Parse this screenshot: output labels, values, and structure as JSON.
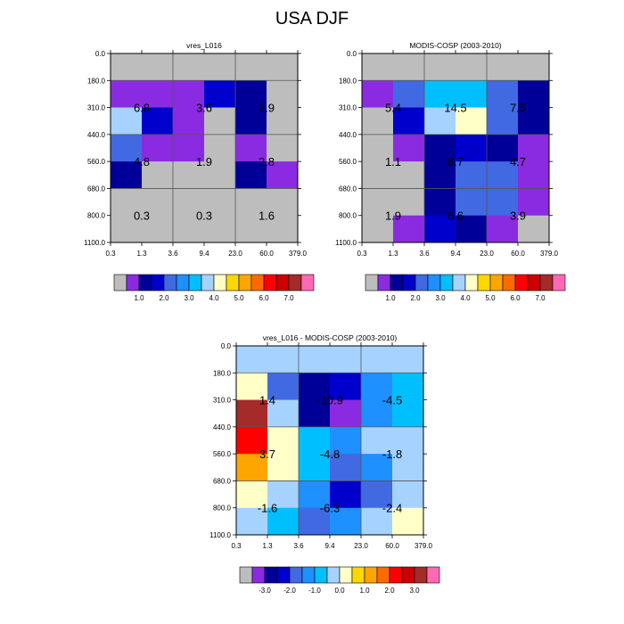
{
  "figure": {
    "title": "USA DJF"
  },
  "palette": [
    "#bdbdbd",
    "#8a2be2",
    "#000099",
    "#0000cd",
    "#4169e1",
    "#1e90ff",
    "#00bfff",
    "#a6d2ff",
    "#ffffc8",
    "#ffd700",
    "#ffa500",
    "#ff6a00",
    "#ff0000",
    "#cd0000",
    "#a52a2a",
    "#ff69b4"
  ],
  "diff_palette": [
    "#bdbdbd",
    "#8a2be2",
    "#000099",
    "#0000cd",
    "#4169e1",
    "#1e90ff",
    "#00bfff",
    "#a6d2ff",
    "#ffffc8",
    "#ffd700",
    "#ffa500",
    "#ff6a00",
    "#ff0000",
    "#cd0000",
    "#a52a2a",
    "#ff69b4"
  ],
  "chart_data": [
    {
      "type": "heatmap",
      "title": "vres_L016",
      "x_ticks": [
        "0.3",
        "1.3",
        "3.6",
        "9.4",
        "23.0",
        "60.0",
        "379.0"
      ],
      "y_ticks": [
        "0.0",
        "180.0",
        "310.0",
        "440.0",
        "560.0",
        "680.0",
        "800.0",
        "1100.0"
      ],
      "cell_colors": [
        [
          "#bdbdbd",
          "#bdbdbd",
          "#bdbdbd",
          "#bdbdbd",
          "#bdbdbd",
          "#bdbdbd"
        ],
        [
          "#8a2be2",
          "#8a2be2",
          "#8a2be2",
          "#0000cd",
          "#000099",
          "#bdbdbd"
        ],
        [
          "#a6d2ff",
          "#0000cd",
          "#8a2be2",
          "#bdbdbd",
          "#000099",
          "#bdbdbd"
        ],
        [
          "#4169e1",
          "#8a2be2",
          "#8a2be2",
          "#bdbdbd",
          "#8a2be2",
          "#bdbdbd"
        ],
        [
          "#000099",
          "#bdbdbd",
          "#bdbdbd",
          "#bdbdbd",
          "#000099",
          "#8a2be2"
        ],
        [
          "#bdbdbd",
          "#bdbdbd",
          "#bdbdbd",
          "#bdbdbd",
          "#bdbdbd",
          "#bdbdbd"
        ],
        [
          "#bdbdbd",
          "#bdbdbd",
          "#bdbdbd",
          "#bdbdbd",
          "#bdbdbd",
          "#bdbdbd"
        ]
      ],
      "cell_values": [
        [
          "6.8",
          "3.6",
          "2.9"
        ],
        [
          "4.8",
          "1.9",
          "2.8"
        ],
        [
          "0.3",
          "0.3",
          "1.6"
        ]
      ],
      "colorbar_labels": [
        "1.0",
        "2.0",
        "3.0",
        "4.0",
        "5.0",
        "6.0",
        "7.0"
      ]
    },
    {
      "type": "heatmap",
      "title": "MODIS-COSP (2003-2010)",
      "x_ticks": [
        "0.3",
        "1.3",
        "3.6",
        "9.4",
        "23.0",
        "60.0",
        "379.0"
      ],
      "y_ticks": [
        "0.0",
        "180.0",
        "310.0",
        "440.0",
        "560.0",
        "680.0",
        "800.0",
        "1100.0"
      ],
      "cell_colors": [
        [
          "#bdbdbd",
          "#bdbdbd",
          "#bdbdbd",
          "#bdbdbd",
          "#bdbdbd",
          "#bdbdbd"
        ],
        [
          "#8a2be2",
          "#4169e1",
          "#00bfff",
          "#00bfff",
          "#4169e1",
          "#000099"
        ],
        [
          "#bdbdbd",
          "#0000cd",
          "#a6d2ff",
          "#ffffc8",
          "#4169e1",
          "#000099"
        ],
        [
          "#bdbdbd",
          "#8a2be2",
          "#000099",
          "#0000cd",
          "#000099",
          "#8a2be2"
        ],
        [
          "#bdbdbd",
          "#bdbdbd",
          "#000099",
          "#4169e1",
          "#4169e1",
          "#8a2be2"
        ],
        [
          "#bdbdbd",
          "#bdbdbd",
          "#000099",
          "#4169e1",
          "#4169e1",
          "#8a2be2"
        ],
        [
          "#bdbdbd",
          "#8a2be2",
          "#0000cd",
          "#000099",
          "#8a2be2",
          "#bdbdbd"
        ]
      ],
      "cell_values": [
        [
          "5.4",
          "14.5",
          "7.5"
        ],
        [
          "1.1",
          "8.7",
          "4.7"
        ],
        [
          "1.9",
          "6.6",
          "3.9"
        ]
      ],
      "colorbar_labels": [
        "1.0",
        "2.0",
        "3.0",
        "4.0",
        "5.0",
        "6.0",
        "7.0"
      ]
    },
    {
      "type": "heatmap",
      "title": "vres_L016 - MODIS-COSP (2003-2010)",
      "x_ticks": [
        "0.3",
        "1.3",
        "3.6",
        "9.4",
        "23.0",
        "60.0",
        "379.0"
      ],
      "y_ticks": [
        "0.0",
        "180.0",
        "310.0",
        "440.0",
        "560.0",
        "680.0",
        "800.0",
        "1100.0"
      ],
      "cell_colors": [
        [
          "#a6d2ff",
          "#a6d2ff",
          "#a6d2ff",
          "#a6d2ff",
          "#a6d2ff",
          "#a6d2ff"
        ],
        [
          "#ffffc8",
          "#4169e1",
          "#000099",
          "#0000cd",
          "#1e90ff",
          "#00bfff"
        ],
        [
          "#a52a2a",
          "#a6d2ff",
          "#000099",
          "#8a2be2",
          "#1e90ff",
          "#00bfff"
        ],
        [
          "#ff0000",
          "#ffffc8",
          "#00bfff",
          "#1e90ff",
          "#a6d2ff",
          "#a6d2ff"
        ],
        [
          "#ffa500",
          "#ffffc8",
          "#00bfff",
          "#4169e1",
          "#1e90ff",
          "#a6d2ff"
        ],
        [
          "#ffffc8",
          "#a6d2ff",
          "#1e90ff",
          "#0000cd",
          "#4169e1",
          "#a6d2ff"
        ],
        [
          "#a6d2ff",
          "#00bfff",
          "#4169e1",
          "#1e90ff",
          "#a6d2ff",
          "#ffffc8"
        ]
      ],
      "cell_values": [
        [
          "1.4",
          "-10.9",
          "-4.5"
        ],
        [
          "3.7",
          "-4.8",
          "-1.8"
        ],
        [
          "-1.6",
          "-6.3",
          "-2.4"
        ]
      ],
      "colorbar_labels": [
        "-3.0",
        "-2.0",
        "-1.0",
        "0.0",
        "1.0",
        "2.0",
        "3.0"
      ]
    }
  ]
}
